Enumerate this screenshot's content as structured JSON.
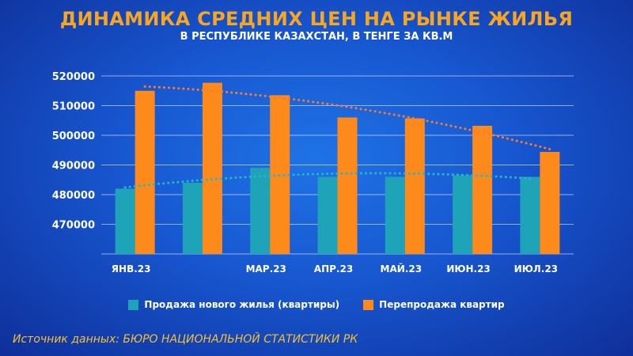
{
  "title": "ДИНАМИКА СРЕДНИХ ЦЕН НА РЫНКЕ ЖИЛЬЯ",
  "subtitle": "В РЕСПУБЛИКЕ КАЗАХСТАН, В ТЕНГЕ ЗА КВ.М",
  "source": "Источник данных: БЮРО НАЦИОНАЛЬНОЙ СТАТИСТИКИ РК",
  "colors": {
    "new_housing": "#1fa3b8",
    "resale": "#ff8a1c",
    "title": "#f6a623",
    "source": "#f6c033"
  },
  "chart_data": {
    "type": "bar",
    "categories": [
      "ЯНВ.23",
      "",
      "МАР.23",
      "АПР.23",
      "МАЙ.23",
      "ИЮН.23",
      "ИЮЛ.23"
    ],
    "series": [
      {
        "name": "Продажа нового жилья (квартиры)",
        "values": [
          482000,
          484000,
          489000,
          486000,
          486000,
          486500,
          486000
        ],
        "trendline": "polynomial"
      },
      {
        "name": "Перепродажа квартир",
        "values": [
          515000,
          517700,
          513500,
          506000,
          505700,
          503200,
          494400
        ],
        "trendline": "polynomial"
      }
    ],
    "yticks": [
      "520000",
      "510000",
      "500000",
      "490000",
      "480000",
      "470000"
    ],
    "ylim": [
      460000,
      520000
    ],
    "grid": true,
    "legend": "bottom"
  }
}
